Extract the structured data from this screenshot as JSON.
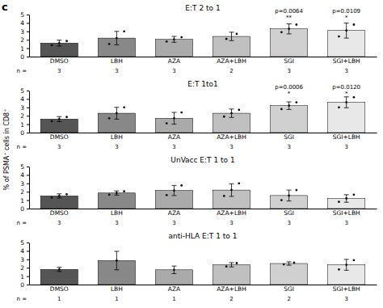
{
  "chart_data": [
    {
      "type": "bar",
      "title": "E:T 2 to 1",
      "ylabel": "% of PSMA⁺ cells in CD8⁺",
      "categories": [
        "DMSO",
        "LBH",
        "AZA",
        "AZA+LBH",
        "SGI",
        "SGI+LBH"
      ],
      "colors": [
        "#555555",
        "#888888",
        "#aaaaaa",
        "#c0c0c0",
        "#d0d0d0",
        "#e8e8e8"
      ],
      "values": [
        1.6,
        2.2,
        2.05,
        2.4,
        3.3,
        3.1
      ],
      "errors": [
        0.35,
        0.8,
        0.35,
        0.5,
        0.6,
        0.9
      ],
      "points": [
        [
          1.35,
          1.6,
          1.85
        ],
        [
          1.5,
          2.2,
          3.0
        ],
        [
          1.8,
          2.05,
          2.3
        ],
        [
          2.1,
          2.7
        ],
        [
          2.9,
          3.3,
          3.8
        ],
        [
          2.4,
          3.1,
          3.8
        ]
      ],
      "n_label": "n =",
      "n": [
        3,
        3,
        3,
        2,
        3,
        3
      ],
      "ylim": [
        0,
        5
      ],
      "yticks": [
        0,
        1,
        2,
        3,
        4,
        5
      ],
      "annotations": [
        {
          "text": "c"
        },
        {
          "x": "SGI",
          "y": 4.3,
          "text": "p=0.0064"
        },
        {
          "x": "SGI",
          "y": 4.3,
          "text": "**"
        },
        {
          "x": "SGI+LBH",
          "y": 4.3,
          "text": "p=0.0109"
        },
        {
          "x": "SGI+LBH",
          "y": 4.3,
          "text": "*"
        }
      ]
    },
    {
      "type": "bar",
      "title": "E:T 1to1",
      "categories": [
        "DMSO",
        "LBH",
        "AZA",
        "AZA+LBH",
        "SGI",
        "SGI+LBH"
      ],
      "colors": [
        "#555555",
        "#888888",
        "#aaaaaa",
        "#c0c0c0",
        "#d0d0d0",
        "#e8e8e8"
      ],
      "values": [
        1.6,
        2.3,
        1.7,
        2.3,
        3.2,
        3.6
      ],
      "errors": [
        0.3,
        0.7,
        0.7,
        0.5,
        0.45,
        0.65
      ],
      "points": [
        [
          1.35,
          1.6,
          1.85
        ],
        [
          1.7,
          2.3,
          3.0
        ],
        [
          1.1,
          1.7,
          2.4
        ],
        [
          1.9,
          2.3,
          2.7
        ],
        [
          2.8,
          3.2,
          3.6
        ],
        [
          3.0,
          3.6,
          4.2
        ]
      ],
      "n_label": "n =",
      "n": [
        3,
        3,
        3,
        3,
        3,
        3
      ],
      "ylim": [
        0,
        5
      ],
      "yticks": [
        0,
        1,
        2,
        3,
        4,
        5
      ],
      "annotations": [
        {
          "x": "SGI",
          "y": 4.3,
          "text": "p=0.0006"
        },
        {
          "x": "SGI",
          "y": 4.3,
          "text": "*"
        },
        {
          "x": "SGI+LBH",
          "y": 4.3,
          "text": "p=0.0120"
        },
        {
          "x": "SGI+LBH",
          "y": 4.3,
          "text": "*"
        }
      ]
    },
    {
      "type": "bar",
      "title": "UnVacc E:T 1 to 1",
      "categories": [
        "DMSO",
        "LBH",
        "AZA",
        "AZA+LBH",
        "SGI",
        "SGI+LBH"
      ],
      "colors": [
        "#555555",
        "#888888",
        "#aaaaaa",
        "#c0c0c0",
        "#d0d0d0",
        "#e8e8e8"
      ],
      "values": [
        1.5,
        1.85,
        2.15,
        2.2,
        1.55,
        1.2
      ],
      "errors": [
        0.25,
        0.25,
        0.6,
        0.75,
        0.65,
        0.45
      ],
      "points": [
        [
          1.3,
          1.5,
          1.7
        ],
        [
          1.65,
          1.85,
          2.05
        ],
        [
          1.6,
          2.15,
          2.75
        ],
        [
          1.5,
          2.2,
          3.0
        ],
        [
          1.0,
          1.55,
          2.2
        ],
        [
          0.8,
          1.2,
          1.65
        ]
      ],
      "n_label": "n =",
      "n": [
        3,
        3,
        3,
        3,
        3,
        3
      ],
      "ylim": [
        0,
        5
      ],
      "yticks": [
        0,
        1,
        2,
        3,
        4,
        5
      ]
    },
    {
      "type": "bar",
      "title": "anti-HLA E:T 1 to 1",
      "categories": [
        "DMSO",
        "LBH",
        "AZA",
        "AZA+LBH",
        "SGI",
        "SGI+LBH"
      ],
      "colors": [
        "#555555",
        "#888888",
        "#aaaaaa",
        "#c0c0c0",
        "#d0d0d0",
        "#e8e8e8"
      ],
      "values": [
        1.8,
        2.85,
        1.75,
        2.35,
        2.5,
        2.35
      ],
      "errors": [
        0.25,
        1.1,
        0.45,
        0.25,
        0.2,
        0.65
      ],
      "points": [
        [
          1.8
        ],
        [
          2.85
        ],
        [
          1.75
        ],
        [
          2.15,
          2.55
        ],
        [
          2.4,
          2.6
        ],
        [
          1.8,
          2.35,
          2.9
        ]
      ],
      "n_label": "n =",
      "n": [
        1,
        1,
        1,
        2,
        2,
        3
      ],
      "ylim": [
        0,
        5
      ],
      "yticks": [
        0,
        1,
        2,
        3,
        4,
        5
      ]
    }
  ]
}
